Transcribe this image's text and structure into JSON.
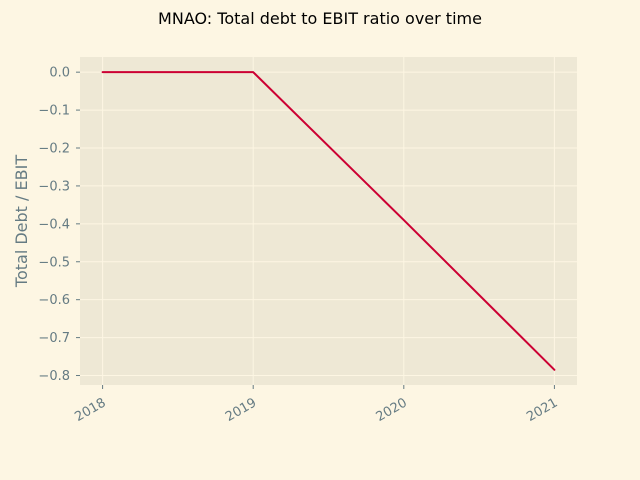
{
  "chart_data": {
    "type": "line",
    "title": "MNAO: Total debt to EBIT ratio over time",
    "xlabel": "",
    "ylabel": "Total Debt / EBIT",
    "x": [
      "2018",
      "2019",
      "2020",
      "2021"
    ],
    "x_tick_labels": [
      "2018",
      "2019",
      "2020",
      "2021"
    ],
    "y_tick_labels": [
      "0.0",
      "−0.1",
      "−0.2",
      "−0.3",
      "−0.4",
      "−0.5",
      "−0.6",
      "−0.7",
      "−0.8"
    ],
    "y_ticks": [
      0.0,
      -0.1,
      -0.2,
      -0.3,
      -0.4,
      -0.5,
      -0.6,
      -0.7,
      -0.8
    ],
    "ylim": [
      -0.825,
      0.04
    ],
    "xlim": [
      2017.85,
      2021.15
    ],
    "series": [
      {
        "values": [
          0.0,
          0.0,
          -0.39,
          -0.785
        ],
        "color": "#cc0033"
      }
    ],
    "grid": true,
    "legend": "none",
    "colors": {
      "background": "#fdf6e3",
      "plot_area": "#eee8d5",
      "grid": "#fdf6e3",
      "text": "#657b83"
    }
  }
}
